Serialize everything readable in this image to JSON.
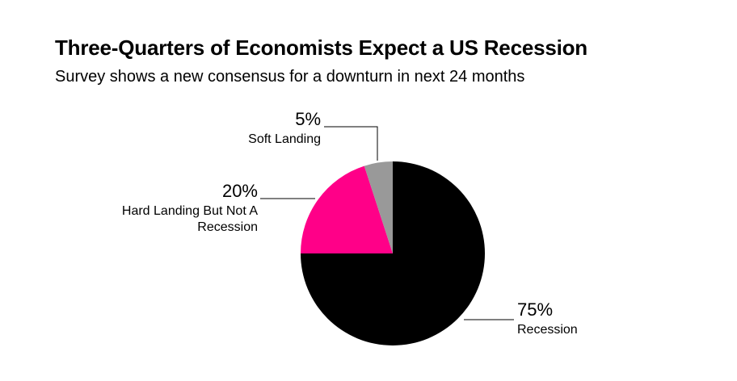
{
  "chart_data": {
    "type": "pie",
    "title": "Three-Quarters of Economists Expect a US Recession",
    "subtitle": "Survey shows a new consensus for a downturn in next 24 months",
    "slices": [
      {
        "label": "Recession",
        "label_lines": [
          "Recession"
        ],
        "value": 75,
        "value_label": "75%",
        "color": "#000000"
      },
      {
        "label": "Hard Landing But Not A Recession",
        "label_lines": [
          "Hard Landing But Not A",
          "Recession"
        ],
        "value": 20,
        "value_label": "20%",
        "color": "#ff0088"
      },
      {
        "label": "Soft Landing",
        "label_lines": [
          "Soft Landing"
        ],
        "value": 5,
        "value_label": "5%",
        "color": "#999999"
      }
    ]
  }
}
